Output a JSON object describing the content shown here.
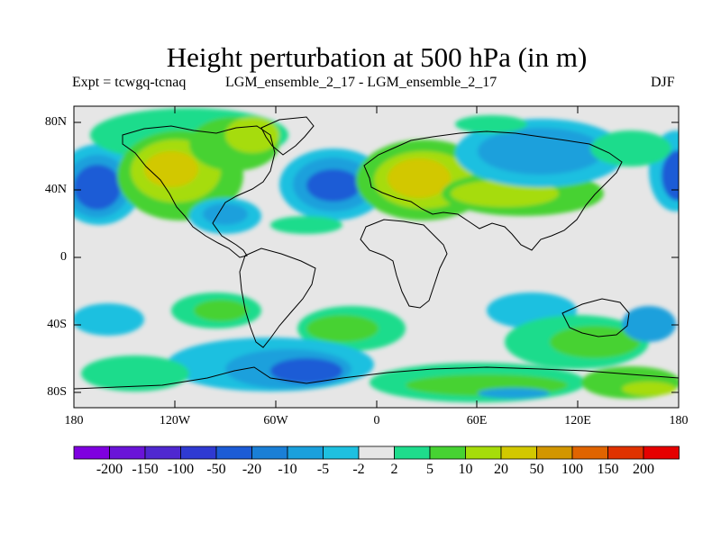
{
  "title": "Height perturbation at 500 hPa (in m)",
  "experiment": "Expt = tcwgq-tcnaq",
  "comparison": "LGM_ensemble_2_17 - LGM_ensemble_2_17",
  "season": "DJF",
  "lat_labels": [
    "80N",
    "40N",
    "0",
    "40S",
    "80S"
  ],
  "lon_labels": [
    "180",
    "120W",
    "60W",
    "0",
    "60E",
    "120E",
    "180"
  ],
  "colorbar": {
    "labels": [
      "-200",
      "-150",
      "-100",
      "-50",
      "-20",
      "-10",
      "-5",
      "-2",
      "2",
      "5",
      "10",
      "20",
      "50",
      "100",
      "150",
      "200"
    ],
    "colors": [
      "#7f00e0",
      "#6a14d8",
      "#4f28d0",
      "#2f3ad2",
      "#1c5cd6",
      "#1a7fd6",
      "#1aa0dc",
      "#1ec0e0",
      "#e6e6e6",
      "#1edc8c",
      "#46d232",
      "#a6dc0a",
      "#d2c800",
      "#d29600",
      "#e06400",
      "#e03200",
      "#e60000"
    ]
  },
  "colors": {
    "ocean_background": "#e6e6e6",
    "coastline": "#000000"
  }
}
